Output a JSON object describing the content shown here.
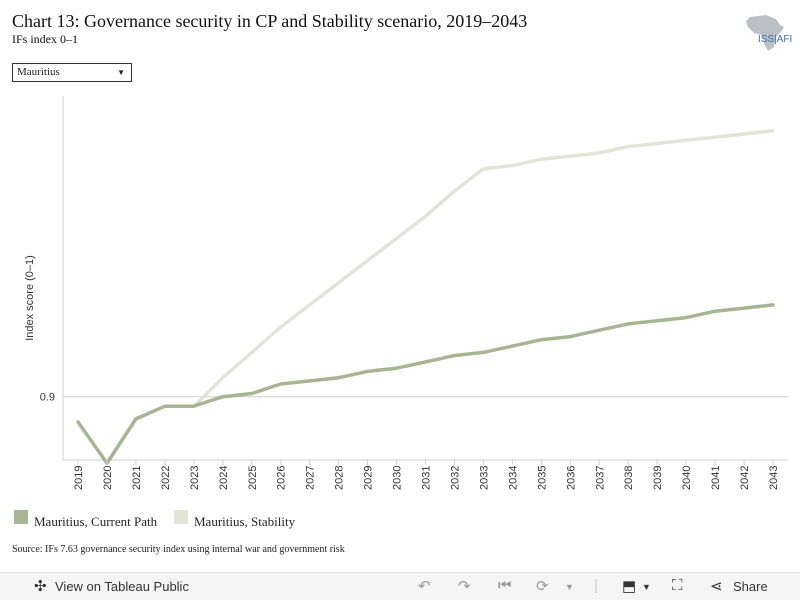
{
  "header": {
    "title": "Chart 13: Governance security in CP and Stability scenario, 2019–2043",
    "subtitle": "IFs index 0–1",
    "logo_text": "ISS|AFI"
  },
  "filter": {
    "selected": "Mauritius"
  },
  "chart_data": {
    "type": "line",
    "title": "Chart 13: Governance security in CP and Stability scenario, 2019–2043",
    "subtitle": "IFs index 0–1",
    "ylabel": "Index score (0–1)",
    "xlabel": "",
    "x": [
      "2019",
      "2020",
      "2021",
      "2022",
      "2023",
      "2024",
      "2025",
      "2026",
      "2027",
      "2028",
      "2029",
      "2030",
      "2031",
      "2032",
      "2033",
      "2034",
      "2035",
      "2036",
      "2037",
      "2038",
      "2039",
      "2040",
      "2041",
      "2042",
      "2043"
    ],
    "yticks": [
      0.9
    ],
    "ylim": [
      0.7,
      1.85
    ],
    "grid": false,
    "legend_position": "bottom-left",
    "series": [
      {
        "name": "Mauritius, Current Path",
        "color": "#a8b594",
        "values": [
          0.82,
          0.69,
          0.83,
          0.87,
          0.87,
          0.9,
          0.91,
          0.94,
          0.95,
          0.96,
          0.98,
          0.99,
          1.01,
          1.03,
          1.04,
          1.06,
          1.08,
          1.09,
          1.11,
          1.13,
          1.14,
          1.15,
          1.17,
          1.18,
          1.19
        ]
      },
      {
        "name": "Mauritius, Stability",
        "color": "#e2e4d8",
        "values": [
          0.82,
          0.69,
          0.83,
          0.87,
          0.87,
          0.96,
          1.04,
          1.12,
          1.19,
          1.26,
          1.33,
          1.4,
          1.47,
          1.55,
          1.62,
          1.63,
          1.65,
          1.66,
          1.67,
          1.69,
          1.7,
          1.71,
          1.72,
          1.73,
          1.74
        ]
      }
    ]
  },
  "legend": {
    "items": [
      {
        "label": "Mauritius, Current Path",
        "color": "#a8b594"
      },
      {
        "label": "Mauritius, Stability",
        "color": "#e2e4d8"
      }
    ]
  },
  "source": "Source: IFs 7.63 governance security index using internal war and government risk",
  "toolbar": {
    "view_label": "View on Tableau Public",
    "share_label": "Share",
    "undo_icon": "undo-icon",
    "redo_icon": "redo-icon",
    "revert_icon": "revert-icon",
    "refresh_icon": "refresh-icon",
    "download_icon": "download-icon",
    "fullscreen_icon": "fullscreen-icon",
    "share_icon": "share-icon"
  }
}
